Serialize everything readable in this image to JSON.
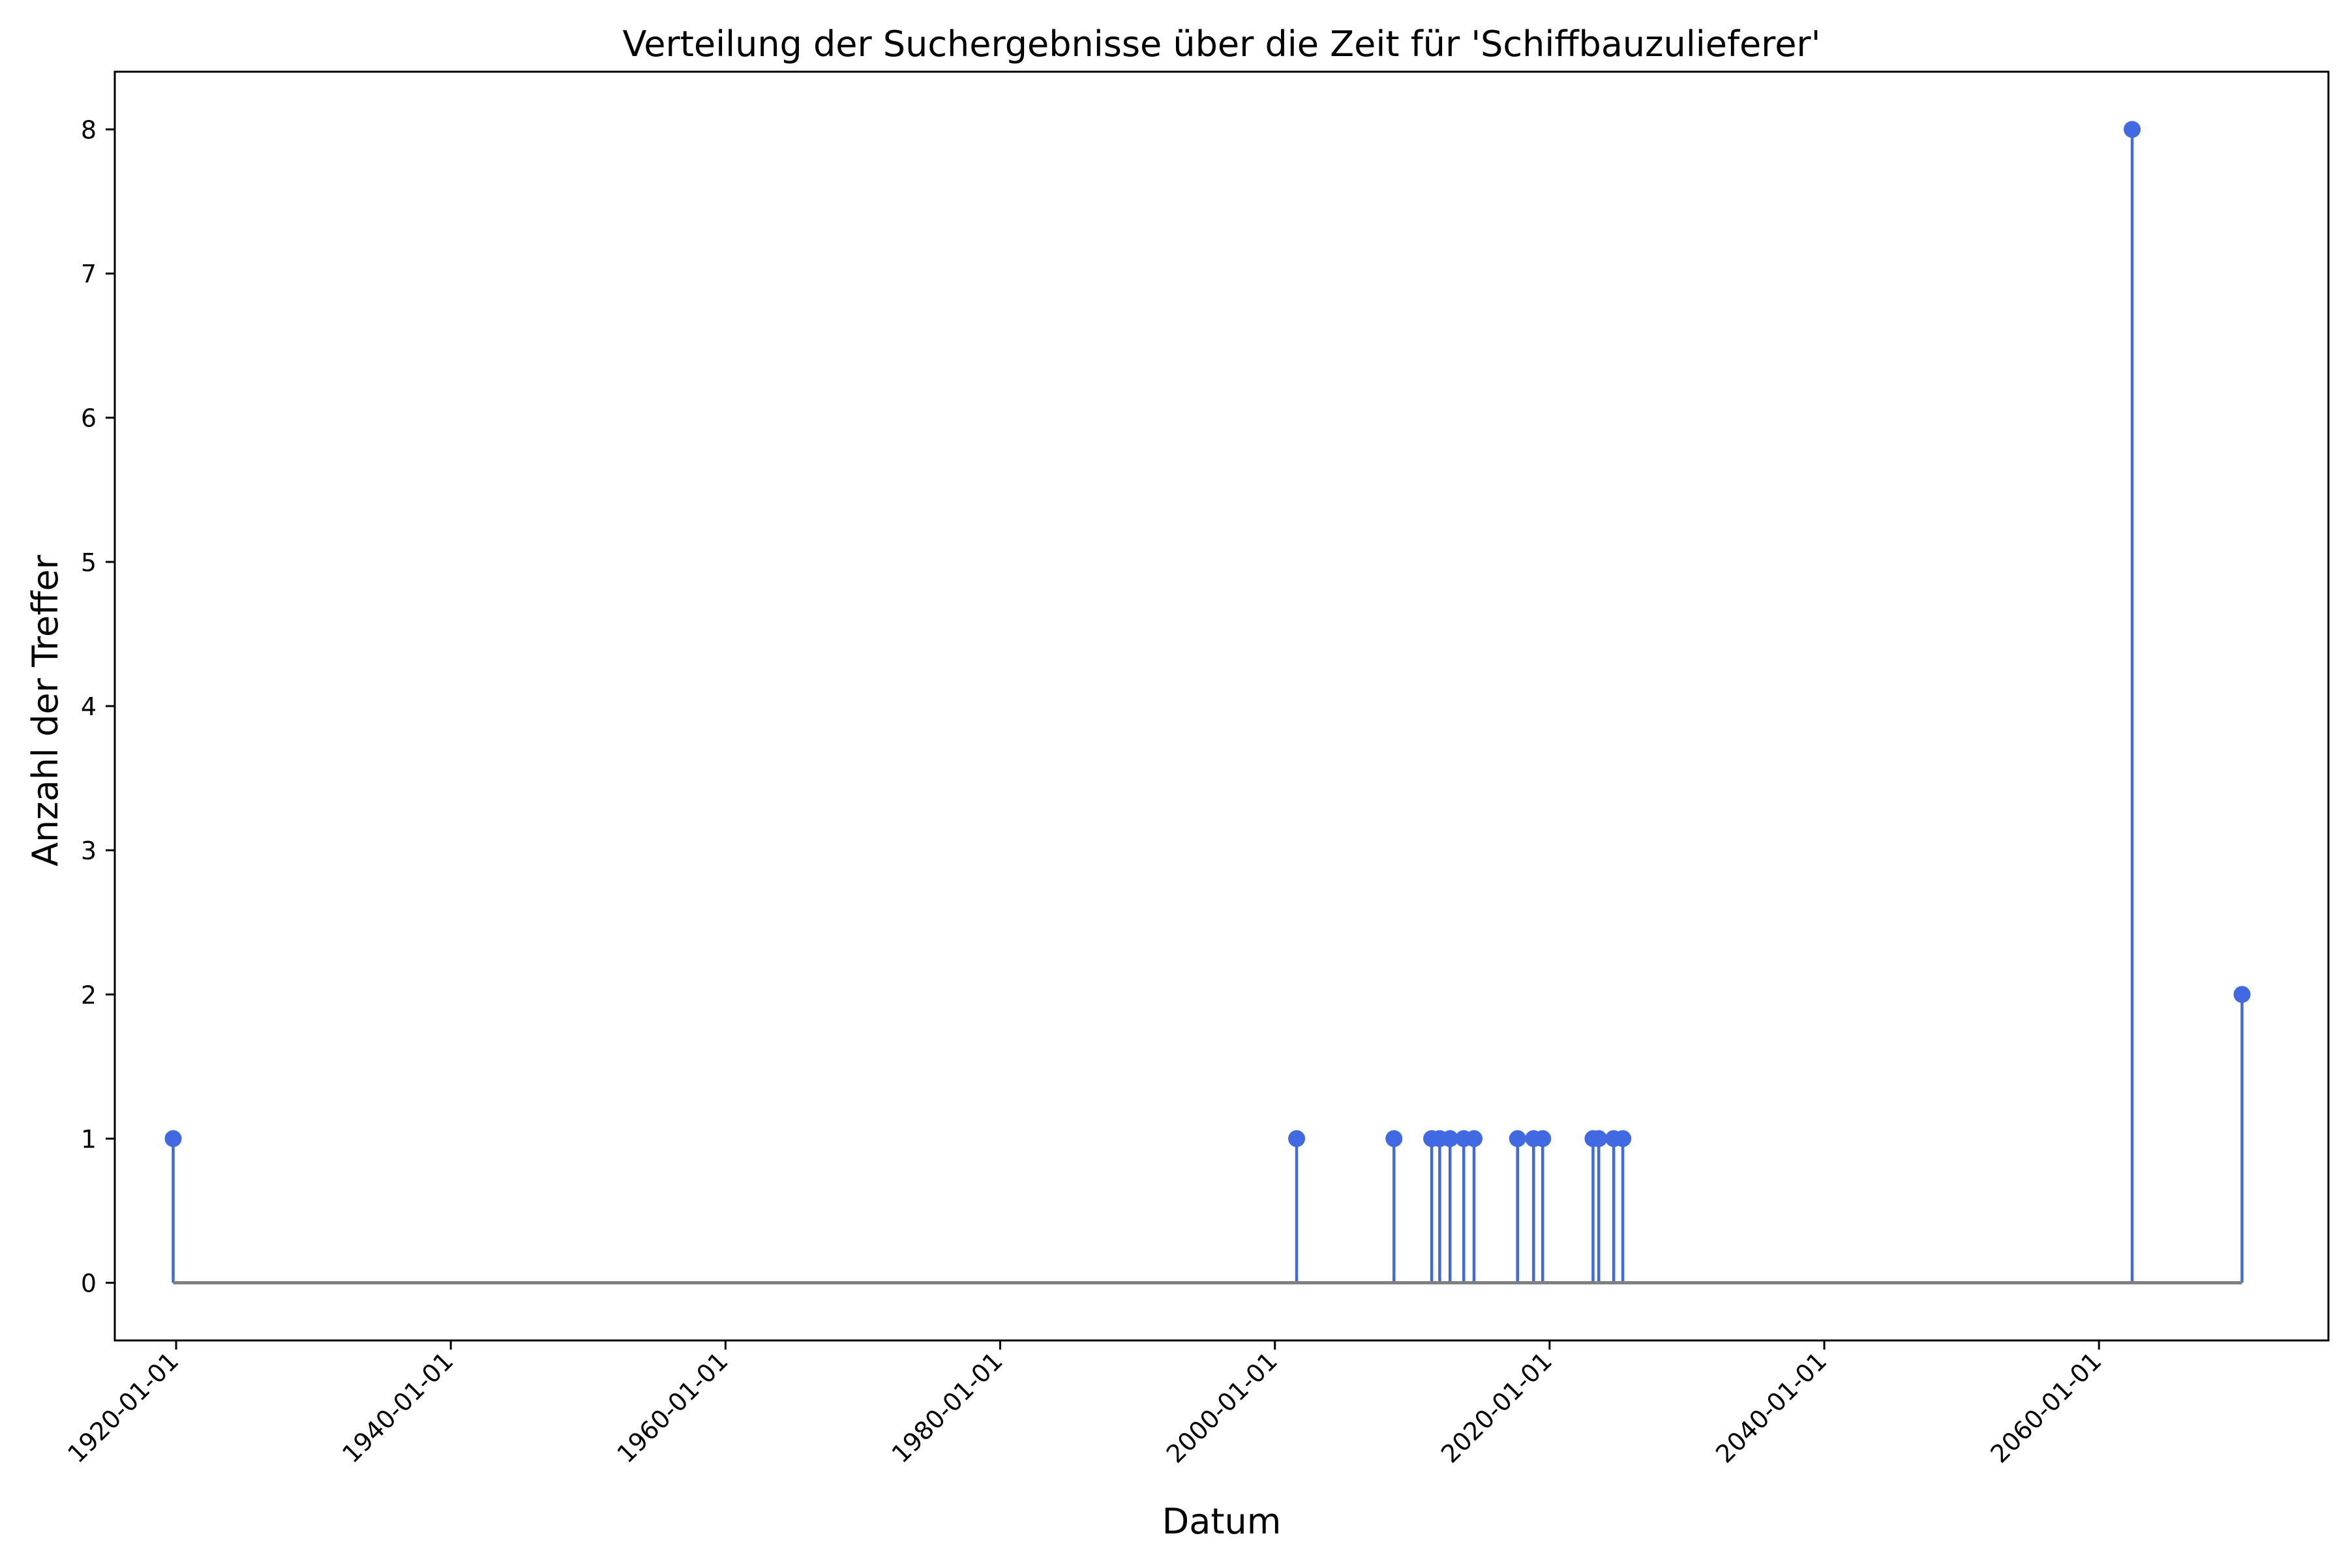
{
  "chart_data": {
    "type": "stem",
    "title": "Verteilung der Suchergebnisse über die Zeit für 'Schiffbauzulieferer'",
    "xlabel": "Datum",
    "ylabel": "Anzahl der Treffer",
    "x_axis_type": "date",
    "xlim": [
      "1915-07-15",
      "2076-09-15"
    ],
    "ylim": [
      -0.4,
      8.4
    ],
    "x_ticks": [
      "1920-01-01",
      "1940-01-01",
      "1960-01-01",
      "1980-01-01",
      "2000-01-01",
      "2020-01-01",
      "2040-01-01",
      "2060-01-01"
    ],
    "y_ticks": [
      0,
      1,
      2,
      3,
      4,
      5,
      6,
      7,
      8
    ],
    "grid": false,
    "legend": "none",
    "colors": {
      "stem": "#4169E1",
      "marker": "#4169E1",
      "baseline": "#808080"
    },
    "points": [
      {
        "x": "1919-10-15",
        "y": 1
      },
      {
        "x": "2001-08-01",
        "y": 1
      },
      {
        "x": "2008-09-01",
        "y": 1
      },
      {
        "x": "2011-06-01",
        "y": 1
      },
      {
        "x": "2012-01-01",
        "y": 1
      },
      {
        "x": "2012-10-01",
        "y": 1
      },
      {
        "x": "2013-10-01",
        "y": 1
      },
      {
        "x": "2014-07-01",
        "y": 1
      },
      {
        "x": "2017-09-01",
        "y": 1
      },
      {
        "x": "2018-11-01",
        "y": 1
      },
      {
        "x": "2019-07-01",
        "y": 1
      },
      {
        "x": "2023-03-01",
        "y": 1
      },
      {
        "x": "2023-08-01",
        "y": 1
      },
      {
        "x": "2024-09-01",
        "y": 1
      },
      {
        "x": "2025-05-01",
        "y": 1
      },
      {
        "x": "2062-06-01",
        "y": 8
      },
      {
        "x": "2070-06-01",
        "y": 2
      }
    ]
  }
}
